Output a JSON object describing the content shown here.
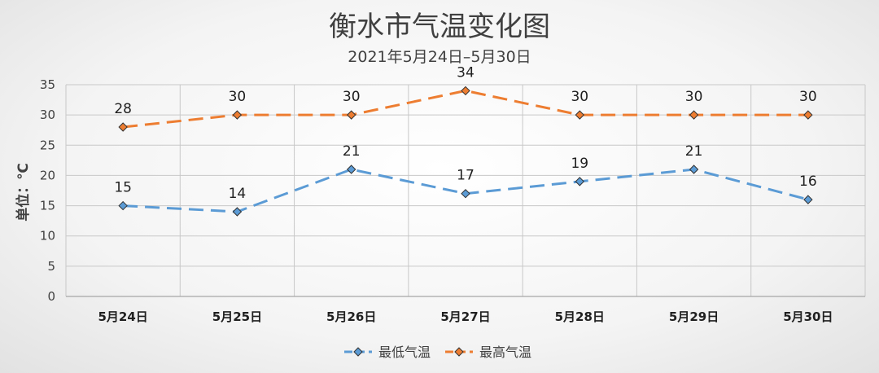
{
  "chart_data": {
    "type": "line",
    "title": "衡水市气温变化图",
    "subtitle": "2021年5月24日–5月30日",
    "ylabel": "单位：℃",
    "xlabel": "",
    "categories": [
      "5月24日",
      "5月25日",
      "5月26日",
      "5月27日",
      "5月28日",
      "5月29日",
      "5月30日"
    ],
    "ylim": [
      0,
      35
    ],
    "yticks": [
      0,
      5,
      10,
      15,
      20,
      25,
      30,
      35
    ],
    "grid": true,
    "legend_position": "bottom",
    "series": [
      {
        "name": "最低气温",
        "values": [
          15,
          14,
          21,
          17,
          19,
          21,
          16
        ],
        "color": "#5b9bd5"
      },
      {
        "name": "最高气温",
        "values": [
          28,
          30,
          30,
          34,
          30,
          30,
          30
        ],
        "color": "#ed7d31"
      }
    ]
  }
}
